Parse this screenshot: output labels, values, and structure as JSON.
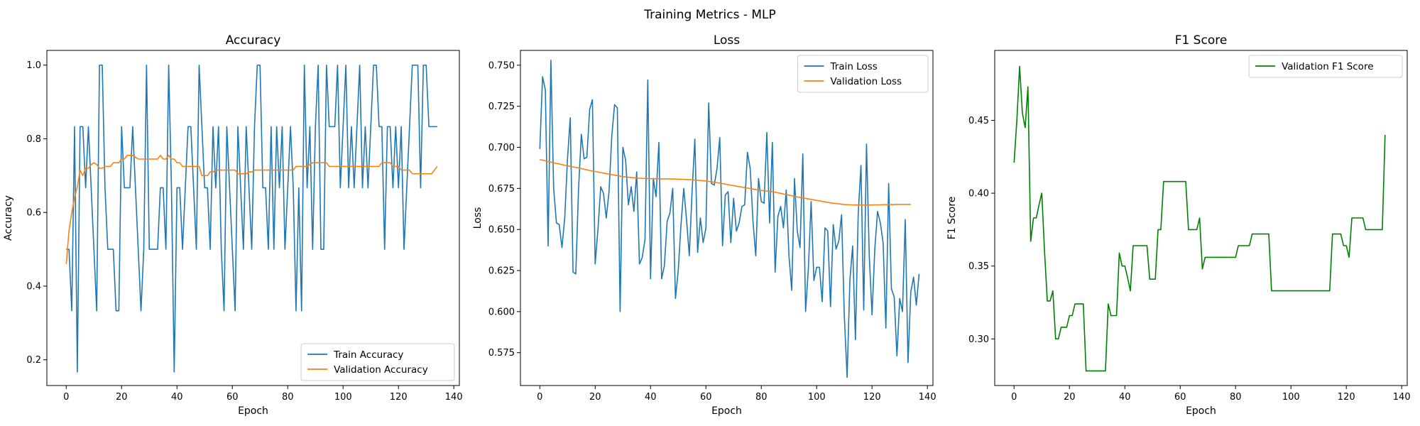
{
  "figure_title": "Training Metrics - MLP",
  "colors": {
    "blue": "#1f77b4",
    "orange": "#ff7f0e",
    "green": "#008000"
  },
  "chart_data": [
    {
      "type": "line",
      "title": "Accuracy",
      "xlabel": "Epoch",
      "ylabel": "Accuracy",
      "xlim": [
        -7,
        142
      ],
      "ylim": [
        0.13,
        1.04
      ],
      "xticks": [
        0,
        20,
        40,
        60,
        80,
        100,
        120,
        140
      ],
      "yticks": [
        0.2,
        0.4,
        0.6,
        0.8,
        1.0
      ],
      "ytick_labels": [
        "0.2",
        "0.4",
        "0.6",
        "0.8",
        "1.0"
      ],
      "legend": "lower-right",
      "series": [
        {
          "name": "Train Accuracy",
          "color": "#1f77b4",
          "values": [
            0.5,
            0.5,
            0.333,
            0.833,
            0.167,
            0.833,
            0.833,
            0.667,
            0.833,
            0.667,
            0.5,
            0.333,
            1.0,
            1.0,
            0.667,
            0.5,
            0.5,
            0.5,
            0.333,
            0.333,
            0.833,
            0.667,
            0.667,
            0.667,
            0.833,
            0.667,
            0.5,
            0.333,
            0.5,
            1.0,
            0.5,
            0.5,
            0.5,
            0.5,
            0.667,
            0.667,
            0.5,
            1.0,
            0.667,
            0.167,
            0.667,
            0.667,
            0.5,
            0.667,
            0.833,
            0.833,
            0.667,
            0.5,
            1.0,
            0.833,
            0.667,
            0.667,
            0.5,
            0.833,
            0.667,
            0.833,
            0.5,
            0.333,
            0.833,
            0.667,
            0.5,
            0.333,
            0.833,
            0.667,
            0.5,
            0.833,
            0.667,
            0.5,
            0.833,
            1.0,
            1.0,
            0.667,
            0.667,
            0.5,
            0.833,
            0.5,
            0.833,
            0.667,
            0.833,
            0.5,
            0.667,
            0.833,
            0.667,
            0.333,
            0.667,
            0.333,
            1.0,
            0.667,
            0.833,
            0.5,
            0.833,
            1.0,
            0.5,
            0.5,
            1.0,
            0.833,
            0.833,
            0.833,
            1.0,
            0.667,
            0.833,
            1.0,
            0.667,
            0.833,
            0.667,
            0.833,
            1.0,
            0.667,
            0.833,
            0.667,
            0.833,
            1.0,
            1.0,
            0.833,
            0.833,
            0.5,
            0.833,
            0.833,
            0.667,
            0.833,
            0.667,
            0.833,
            0.5,
            0.667,
            0.833,
            1.0,
            1.0,
            1.0,
            0.667,
            1.0,
            1.0,
            0.833,
            0.833,
            0.833,
            0.833
          ]
        },
        {
          "name": "Validation Accuracy",
          "color": "#ff7f0e",
          "values": [
            0.46,
            0.55,
            0.6,
            0.64,
            0.67,
            0.715,
            0.7,
            0.72,
            0.72,
            0.73,
            0.735,
            0.73,
            0.72,
            0.72,
            0.725,
            0.725,
            0.725,
            0.735,
            0.735,
            0.735,
            0.745,
            0.745,
            0.755,
            0.755,
            0.755,
            0.75,
            0.745,
            0.745,
            0.745,
            0.745,
            0.745,
            0.745,
            0.745,
            0.745,
            0.755,
            0.745,
            0.745,
            0.755,
            0.745,
            0.745,
            0.735,
            0.735,
            0.725,
            0.725,
            0.725,
            0.725,
            0.725,
            0.725,
            0.725,
            0.7,
            0.7,
            0.7,
            0.71,
            0.71,
            0.715,
            0.715,
            0.715,
            0.715,
            0.715,
            0.715,
            0.715,
            0.715,
            0.705,
            0.705,
            0.705,
            0.705,
            0.71,
            0.71,
            0.715,
            0.715,
            0.715,
            0.715,
            0.715,
            0.715,
            0.715,
            0.715,
            0.715,
            0.715,
            0.715,
            0.715,
            0.715,
            0.715,
            0.715,
            0.725,
            0.725,
            0.725,
            0.725,
            0.725,
            0.73,
            0.735,
            0.735,
            0.735,
            0.735,
            0.735,
            0.735,
            0.725,
            0.725,
            0.725,
            0.725,
            0.725,
            0.725,
            0.725,
            0.725,
            0.725,
            0.725,
            0.725,
            0.725,
            0.725,
            0.725,
            0.725,
            0.725,
            0.725,
            0.725,
            0.725,
            0.735,
            0.735,
            0.735,
            0.735,
            0.725,
            0.725,
            0.725,
            0.715,
            0.715,
            0.715,
            0.715,
            0.705,
            0.705,
            0.705,
            0.705,
            0.705,
            0.705,
            0.705,
            0.705,
            0.715,
            0.725
          ]
        }
      ]
    },
    {
      "type": "line",
      "title": "Loss",
      "xlabel": "Epoch",
      "ylabel": "Loss",
      "xlim": [
        -7,
        142
      ],
      "ylim": [
        0.555,
        0.759
      ],
      "xticks": [
        0,
        20,
        40,
        60,
        80,
        100,
        120,
        140
      ],
      "yticks": [
        0.575,
        0.6,
        0.625,
        0.65,
        0.675,
        0.7,
        0.725,
        0.75
      ],
      "ytick_labels": [
        "0.575",
        "0.600",
        "0.625",
        "0.650",
        "0.675",
        "0.700",
        "0.725",
        "0.750"
      ],
      "legend": "top-right",
      "series": [
        {
          "name": "Train Loss",
          "color": "#1f77b4",
          "values": [
            0.699,
            0.743,
            0.735,
            0.64,
            0.753,
            0.675,
            0.654,
            0.653,
            0.639,
            0.657,
            0.693,
            0.718,
            0.624,
            0.623,
            0.675,
            0.708,
            0.693,
            0.694,
            0.723,
            0.729,
            0.629,
            0.65,
            0.676,
            0.672,
            0.657,
            0.673,
            0.707,
            0.726,
            0.724,
            0.6,
            0.7,
            0.692,
            0.665,
            0.676,
            0.661,
            0.685,
            0.629,
            0.633,
            0.644,
            0.741,
            0.62,
            0.681,
            0.67,
            0.703,
            0.62,
            0.628,
            0.655,
            0.66,
            0.675,
            0.608,
            0.625,
            0.653,
            0.675,
            0.656,
            0.634,
            0.673,
            0.705,
            0.636,
            0.657,
            0.642,
            0.651,
            0.727,
            0.678,
            0.677,
            0.687,
            0.706,
            0.64,
            0.671,
            0.673,
            0.642,
            0.669,
            0.649,
            0.654,
            0.664,
            0.665,
            0.697,
            0.687,
            0.655,
            0.634,
            0.681,
            0.667,
            0.666,
            0.709,
            0.654,
            0.703,
            0.624,
            0.658,
            0.664,
            0.651,
            0.674,
            0.634,
            0.613,
            0.681,
            0.649,
            0.639,
            0.696,
            0.6,
            0.626,
            0.667,
            0.619,
            0.627,
            0.627,
            0.606,
            0.651,
            0.649,
            0.603,
            0.653,
            0.638,
            0.643,
            0.659,
            0.597,
            0.56,
            0.619,
            0.64,
            0.583,
            0.659,
            0.689,
            0.601,
            0.702,
            0.634,
            0.598,
            0.638,
            0.661,
            0.654,
            0.642,
            0.59,
            0.678,
            0.614,
            0.609,
            0.573,
            0.608,
            0.6,
            0.656,
            0.569,
            0.612,
            0.621,
            0.604,
            0.623
          ]
        },
        {
          "name": "Validation Loss",
          "color": "#ff7f0e",
          "values": [
            0.6925,
            0.6922,
            0.6918,
            0.6913,
            0.691,
            0.6906,
            0.6902,
            0.6899,
            0.6895,
            0.6891,
            0.6888,
            0.6884,
            0.6881,
            0.6878,
            0.6875,
            0.6871,
            0.6867,
            0.6863,
            0.6859,
            0.6856,
            0.6853,
            0.685,
            0.6846,
            0.6843,
            0.684,
            0.6837,
            0.6834,
            0.6831,
            0.6828,
            0.6825,
            0.6822,
            0.682,
            0.6818,
            0.6816,
            0.6815,
            0.6813,
            0.6812,
            0.6811,
            0.681,
            0.681,
            0.6809,
            0.6809,
            0.6809,
            0.6809,
            0.6808,
            0.6808,
            0.6808,
            0.6808,
            0.6807,
            0.6807,
            0.6806,
            0.6806,
            0.6805,
            0.6804,
            0.6803,
            0.6802,
            0.6801,
            0.68,
            0.6798,
            0.6797,
            0.6795,
            0.6793,
            0.679,
            0.6788,
            0.6785,
            0.6782,
            0.6779,
            0.6776,
            0.6773,
            0.677,
            0.6767,
            0.6764,
            0.6761,
            0.6758,
            0.6755,
            0.6752,
            0.6749,
            0.6746,
            0.6743,
            0.674,
            0.6738,
            0.6736,
            0.6734,
            0.6732,
            0.673,
            0.6727,
            0.6723,
            0.672,
            0.6716,
            0.6712,
            0.6709,
            0.6705,
            0.6702,
            0.6698,
            0.6695,
            0.6692,
            0.6689,
            0.6686,
            0.6683,
            0.668,
            0.6677,
            0.6674,
            0.6671,
            0.6668,
            0.6665,
            0.6662,
            0.666,
            0.6658,
            0.6656,
            0.6654,
            0.6652,
            0.6651,
            0.665,
            0.665,
            0.6649,
            0.6649,
            0.6649,
            0.6649,
            0.6649,
            0.6649,
            0.6649,
            0.665,
            0.665,
            0.665,
            0.6651,
            0.6651,
            0.6652,
            0.6652,
            0.6652,
            0.6653,
            0.6653,
            0.6653,
            0.6653,
            0.6653,
            0.6653
          ]
        }
      ]
    },
    {
      "type": "line",
      "title": "F1 Score",
      "xlabel": "Epoch",
      "ylabel": "F1 Score",
      "xlim": [
        -7,
        142
      ],
      "ylim": [
        0.268,
        0.498
      ],
      "xticks": [
        0,
        20,
        40,
        60,
        80,
        100,
        120,
        140
      ],
      "yticks": [
        0.3,
        0.35,
        0.4,
        0.45
      ],
      "ytick_labels": [
        "0.30",
        "0.35",
        "0.40",
        "0.45"
      ],
      "legend": "top-right",
      "series": [
        {
          "name": "Validation F1 Score",
          "color": "#008000",
          "values": [
            0.421,
            0.45,
            0.487,
            0.455,
            0.445,
            0.473,
            0.367,
            0.383,
            0.383,
            0.392,
            0.4,
            0.36,
            0.326,
            0.326,
            0.333,
            0.3,
            0.3,
            0.308,
            0.308,
            0.308,
            0.316,
            0.316,
            0.324,
            0.324,
            0.324,
            0.324,
            0.278,
            0.278,
            0.278,
            0.278,
            0.278,
            0.278,
            0.278,
            0.278,
            0.324,
            0.316,
            0.316,
            0.316,
            0.359,
            0.35,
            0.35,
            0.342,
            0.333,
            0.364,
            0.364,
            0.364,
            0.364,
            0.364,
            0.364,
            0.341,
            0.341,
            0.341,
            0.375,
            0.375,
            0.408,
            0.408,
            0.408,
            0.408,
            0.408,
            0.408,
            0.408,
            0.408,
            0.408,
            0.375,
            0.375,
            0.375,
            0.375,
            0.383,
            0.348,
            0.356,
            0.356,
            0.356,
            0.356,
            0.356,
            0.356,
            0.356,
            0.356,
            0.356,
            0.356,
            0.356,
            0.356,
            0.364,
            0.364,
            0.364,
            0.364,
            0.364,
            0.372,
            0.372,
            0.372,
            0.372,
            0.372,
            0.372,
            0.372,
            0.333,
            0.333,
            0.333,
            0.333,
            0.333,
            0.333,
            0.333,
            0.333,
            0.333,
            0.333,
            0.333,
            0.333,
            0.333,
            0.333,
            0.333,
            0.333,
            0.333,
            0.333,
            0.333,
            0.333,
            0.333,
            0.333,
            0.372,
            0.372,
            0.372,
            0.372,
            0.364,
            0.364,
            0.356,
            0.383,
            0.383,
            0.383,
            0.383,
            0.383,
            0.375,
            0.375,
            0.375,
            0.375,
            0.375,
            0.375,
            0.375,
            0.44
          ]
        }
      ]
    }
  ]
}
